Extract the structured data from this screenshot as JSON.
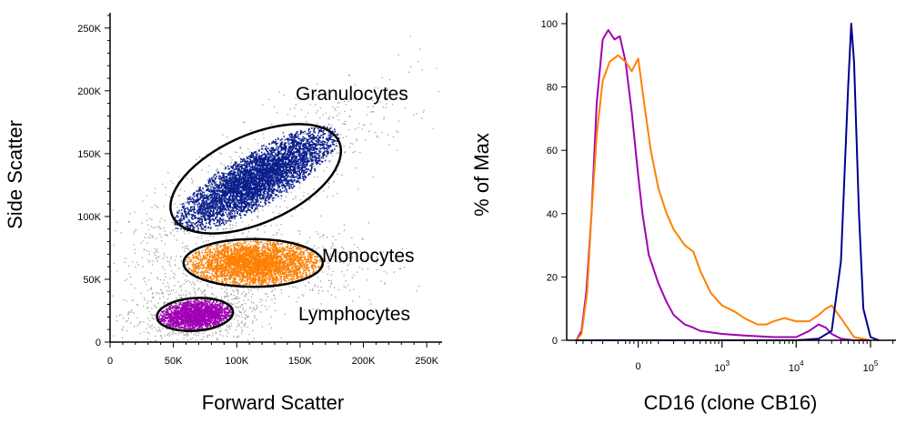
{
  "chart_data": [
    {
      "type": "scatter",
      "xlabel": "Forward Scatter",
      "ylabel": "Side Scatter",
      "xlim": [
        0,
        262144
      ],
      "ylim": [
        0,
        262144
      ],
      "x_tick_labels": [
        "0",
        "50K",
        "100K",
        "150K",
        "200K",
        "250K"
      ],
      "x_ticks": [
        0,
        50000,
        100000,
        150000,
        200000,
        250000
      ],
      "y_tick_labels": [
        "0",
        "50K",
        "100K",
        "150K",
        "200K",
        "250K"
      ],
      "y_ticks": [
        0,
        50000,
        100000,
        150000,
        200000,
        250000
      ],
      "gates": [
        {
          "label": "Granulocytes",
          "color": "#0a1e8c",
          "center": [
            115000,
            130000
          ],
          "semi_axes": [
            72000,
            35000
          ],
          "rotation_deg": -24,
          "approx_events": 5200
        },
        {
          "label": "Monocytes",
          "color": "#ff8000",
          "center": [
            113000,
            63000
          ],
          "semi_axes": [
            55000,
            19000
          ],
          "rotation_deg": 0,
          "approx_events": 3000
        },
        {
          "label": "Lymphocytes",
          "color": "#a000b4",
          "center": [
            67000,
            22000
          ],
          "semi_axes": [
            30000,
            13000
          ],
          "rotation_deg": -4,
          "approx_events": 1800
        }
      ],
      "background_events_color": "#a0a0a0",
      "grid": false
    },
    {
      "type": "line",
      "xlabel": "CD16 (clone CB16)",
      "ylabel": "% of Max",
      "x_scale": "biexponential",
      "x_tick_labels": [
        "0",
        "10^3",
        "10^4",
        "10^5"
      ],
      "x_ticks": [
        0,
        1000,
        10000,
        100000
      ],
      "ylim": [
        0,
        100
      ],
      "y_tick_labels": [
        "0",
        "20",
        "40",
        "60",
        "80",
        "100"
      ],
      "y_ticks": [
        0,
        20,
        40,
        60,
        80,
        100
      ],
      "grid": false,
      "series": [
        {
          "color": "#a000b4",
          "x": [
            -500,
            -420,
            -360,
            -300,
            -250,
            -200,
            -160,
            -120,
            -90,
            -60,
            -30,
            0,
            20,
            50,
            100,
            150,
            200,
            300,
            400,
            500,
            700,
            1000,
            2000,
            5000,
            10000,
            15000,
            20000,
            25000,
            30000,
            40000,
            60000,
            100000
          ],
          "y": [
            0,
            3,
            15,
            40,
            75,
            95,
            98,
            95,
            96,
            88,
            72,
            52,
            40,
            27,
            18,
            12,
            8,
            5,
            4,
            3,
            2.5,
            2,
            1.5,
            1,
            1,
            3,
            5,
            4,
            2,
            0.5,
            0,
            0
          ]
        },
        {
          "color": "#ff8000",
          "x": [
            -500,
            -420,
            -350,
            -300,
            -250,
            -200,
            -150,
            -100,
            -60,
            -30,
            0,
            30,
            60,
            100,
            150,
            200,
            300,
            400,
            500,
            700,
            1000,
            1500,
            2000,
            3000,
            4000,
            5000,
            7000,
            10000,
            15000,
            20000,
            25000,
            30000,
            40000,
            60000,
            100000
          ],
          "y": [
            0,
            2,
            15,
            40,
            65,
            82,
            88,
            90,
            88,
            85,
            89,
            74,
            60,
            48,
            40,
            35,
            30,
            28,
            22,
            15,
            11,
            9,
            7,
            5,
            5,
            6,
            7,
            6,
            6,
            8,
            10,
            11,
            7,
            1,
            0
          ]
        },
        {
          "color": "#00008c",
          "x": [
            -500,
            0,
            10000,
            20000,
            30000,
            40000,
            50000,
            55000,
            60000,
            70000,
            80000,
            100000,
            130000
          ],
          "y": [
            0,
            0,
            0,
            0.5,
            3,
            25,
            80,
            100,
            88,
            40,
            10,
            1,
            0
          ]
        }
      ]
    }
  ]
}
